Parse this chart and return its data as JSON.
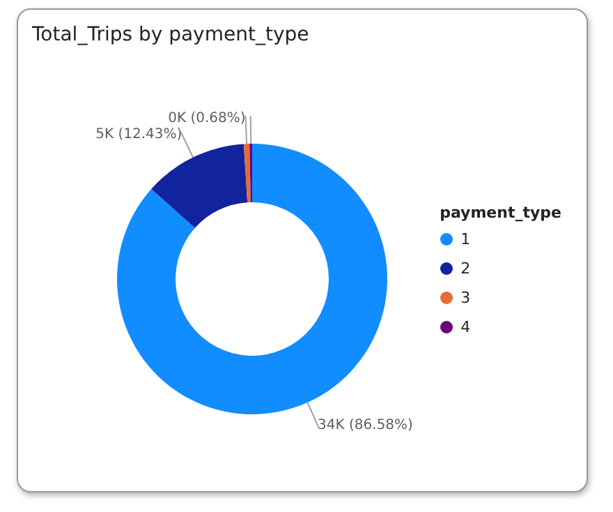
{
  "chart_data": {
    "type": "donut",
    "title": "Total_Trips by payment_type",
    "legend_title": "payment_type",
    "legend": "right",
    "categories": [
      "1",
      "2",
      "3",
      "4"
    ],
    "values": [
      86.58,
      12.43,
      0.68,
      0.31
    ],
    "colors": [
      "#118dff",
      "#12239e",
      "#e66c37",
      "#6b007b"
    ],
    "value_labels": [
      "34K (86.58%)",
      "5K (12.43%)",
      "0K (0.68%)",
      null
    ]
  }
}
